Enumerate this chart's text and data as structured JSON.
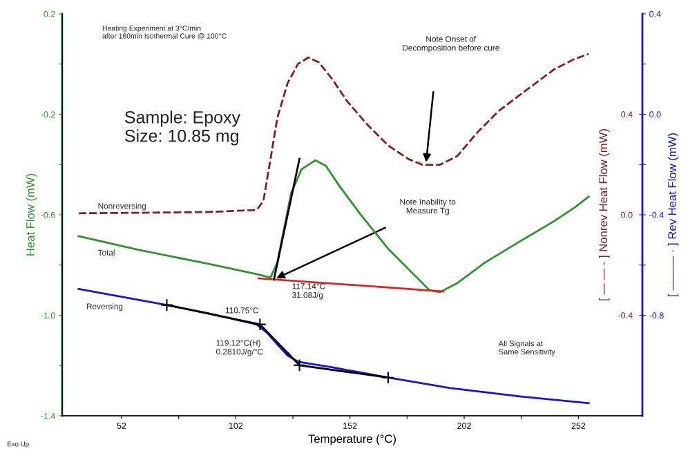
{
  "chart_data": {
    "type": "line",
    "xlabel": "Temperature (°C)",
    "ylabel": "Heat Flow (mW)",
    "y2label": "[ — — - ] Nonrev Heat Flow (mW)",
    "y3label": "[ ——— · ] Rev Heat Flow (mW)",
    "xlim": [
      26,
      280
    ],
    "xticks": [
      52,
      {
        "value": 77,
        "label": null
      },
      102,
      {
        "value": 127,
        "label": null
      },
      152,
      {
        "value": 177,
        "label": null
      },
      202,
      {
        "value": 227,
        "label": null
      },
      252
    ],
    "ylim": [
      -1.4,
      0.2
    ],
    "yticks": [
      -1.4,
      {
        "value": -1.2,
        "label": null
      },
      {
        "value": -1.0,
        "label": "-1.0"
      },
      {
        "value": -0.8,
        "label": null
      },
      -0.6,
      {
        "value": -0.4,
        "label": null
      },
      -0.2,
      {
        "value": 0.0,
        "label": null
      },
      0.2
    ],
    "y2lim": [
      -0.8,
      0.8
    ],
    "y2ticks": [
      -0.4,
      {
        "value": -0.2,
        "label": null
      },
      {
        "value": 0.0,
        "label": "0.0"
      },
      {
        "value": 0.2,
        "label": null
      },
      0.4
    ],
    "y3lim": [
      -1.2,
      0.4
    ],
    "y3ticks": [
      -0.8,
      {
        "value": -0.6,
        "label": null
      },
      -0.4,
      {
        "value": -0.2,
        "label": null
      },
      {
        "value": 0.0,
        "label": "0.0"
      },
      {
        "value": 0.2,
        "label": null
      },
      0.4
    ],
    "grid": false,
    "series": [
      {
        "name": "Nonreversing",
        "color": "#8b1a1a",
        "axis": "y2",
        "line_style": "dashed",
        "x": [
          33.2,
          59.6,
          89.9,
          105.0,
          111.1,
          114.1,
          117.2,
          120.2,
          124.7,
          129.3,
          133.8,
          138.4,
          144.4,
          150.5,
          159.6,
          168.7,
          177.8,
          183.8,
          191.4,
          199.0,
          208.1,
          217.2,
          229.3,
          241.4,
          250.5,
          256.5
        ],
        "values": [
          0.006,
          0.008,
          0.011,
          0.017,
          0.019,
          0.055,
          0.221,
          0.386,
          0.524,
          0.601,
          0.626,
          0.607,
          0.538,
          0.455,
          0.359,
          0.276,
          0.221,
          0.199,
          0.199,
          0.234,
          0.331,
          0.414,
          0.497,
          0.579,
          0.621,
          0.64
        ]
      },
      {
        "name": "Total",
        "color": "#2a962a",
        "axis": "y",
        "line_style": "solid",
        "x": [
          33.2,
          59.6,
          89.9,
          111.1,
          117.2,
          120.2,
          123.2,
          126.2,
          130.8,
          136.8,
          141.4,
          147.5,
          156.5,
          168.7,
          180.8,
          186.8,
          191.4,
          199.0,
          211.1,
          226.2,
          241.4,
          250.5,
          256.5
        ],
        "values": [
          -0.685,
          -0.74,
          -0.795,
          -0.836,
          -0.85,
          -0.79,
          -0.652,
          -0.515,
          -0.419,
          -0.383,
          -0.405,
          -0.487,
          -0.597,
          -0.735,
          -0.845,
          -0.9,
          -0.908,
          -0.872,
          -0.79,
          -0.707,
          -0.625,
          -0.57,
          -0.528
        ]
      },
      {
        "name": "Reversing",
        "color": "#1414e0",
        "axis": "y3",
        "line_style": "solid",
        "x": [
          33.2,
          71.8,
          89.9,
          111.1,
          115.6,
          120.2,
          124.7,
          129.3,
          144.4,
          168.7,
          195.9,
          226.2,
          256.5
        ],
        "values": [
          -0.695,
          -0.759,
          -0.792,
          -0.836,
          -0.869,
          -0.916,
          -0.96,
          -0.985,
          -1.007,
          -1.048,
          -1.09,
          -1.123,
          -1.15
        ]
      },
      {
        "color": "#e02020",
        "axis": "y",
        "line_style": "solid",
        "x": [
          112.0,
          192.9
        ],
        "values": [
          -0.853,
          -0.905
        ]
      },
      {
        "color": "#000000",
        "axis": "y",
        "line_style": "solid",
        "x": [
          118.7,
          129.9
        ],
        "values": [
          -0.858,
          -0.377
        ]
      },
      {
        "color": "#000000",
        "axis": "y3",
        "line_style": "solid",
        "marker": "cross",
        "x": [
          71.8,
          112.6,
          129.9,
          168.7
        ],
        "values": [
          -0.759,
          -0.836,
          -0.999,
          -1.048
        ]
      }
    ],
    "annotations": [
      "Heating Experiment at 3°C/min\nafter 160min Isothermal Cure @ 100°C",
      "Sample: Epoxy\nSize: 10.85 mg",
      "117.14°C\n31.08J/g",
      "110.75°C",
      "119.12°C(H)\n0.2810J/g/°C",
      "All Signals at\nSame Sensitivity",
      "Exo Up",
      "Note Onset of\nDecomposition before cure",
      "Note Inability to\nMeasure Tg"
    ]
  }
}
